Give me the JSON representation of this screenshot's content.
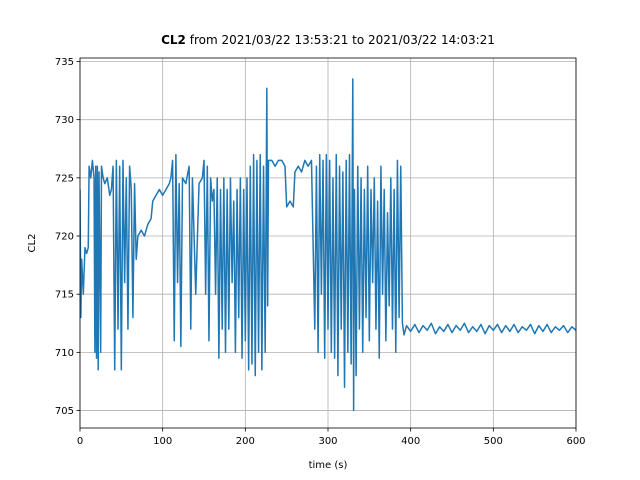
{
  "chart_data": {
    "type": "line",
    "title": {
      "bold": "CL2",
      "rest": "from 2021/03/22 13:53:21 to 2021/03/22 14:03:21"
    },
    "xlabel": "time (s)",
    "ylabel": "CL2",
    "x": [
      0,
      1,
      2,
      4,
      6,
      8,
      10,
      11,
      13,
      15,
      17,
      18,
      19,
      20,
      21,
      22,
      23,
      25,
      26,
      28,
      30,
      33,
      36,
      38,
      40,
      42,
      44,
      46,
      48,
      50,
      52,
      54,
      56,
      58,
      60,
      62,
      64,
      66,
      68,
      70,
      74,
      78,
      82,
      86,
      88,
      92,
      96,
      100,
      104,
      108,
      110,
      112,
      114,
      116,
      118,
      120,
      122,
      124,
      128,
      132,
      134,
      136,
      140,
      144,
      148,
      150,
      152,
      154,
      156,
      158,
      160,
      162,
      164,
      166,
      168,
      170,
      172,
      174,
      176,
      178,
      180,
      182,
      184,
      186,
      188,
      190,
      192,
      194,
      196,
      198,
      200,
      202,
      204,
      206,
      208,
      210,
      212,
      214,
      216,
      218,
      220,
      222,
      224,
      226,
      227,
      228,
      232,
      236,
      240,
      244,
      248,
      250,
      254,
      258,
      260,
      264,
      268,
      272,
      276,
      280,
      284,
      286,
      288,
      290,
      292,
      294,
      296,
      298,
      300,
      302,
      304,
      306,
      308,
      310,
      312,
      314,
      316,
      318,
      320,
      322,
      324,
      326,
      328,
      330,
      331,
      332,
      334,
      336,
      338,
      340,
      342,
      344,
      346,
      348,
      350,
      352,
      354,
      356,
      358,
      360,
      362,
      364,
      366,
      368,
      370,
      372,
      374,
      376,
      378,
      380,
      382,
      384,
      386,
      388,
      390,
      392,
      395,
      400,
      405,
      410,
      415,
      420,
      425,
      430,
      435,
      440,
      445,
      450,
      455,
      460,
      465,
      470,
      475,
      480,
      485,
      490,
      495,
      500,
      505,
      510,
      515,
      520,
      525,
      530,
      535,
      540,
      545,
      550,
      555,
      560,
      565,
      570,
      575,
      580,
      585,
      590,
      595,
      600
    ],
    "series": [
      {
        "color": "#1f77b4",
        "values": [
          724,
          713,
          718,
          715,
          719,
          718.5,
          719,
          726,
          725,
          726.5,
          725,
          710,
          726,
          709.5,
          726,
          708.5,
          725.5,
          710,
          726,
          725,
          724.5,
          725,
          723.5,
          724,
          726,
          708.5,
          726.5,
          712,
          726,
          708.5,
          726.5,
          716,
          725,
          712,
          726,
          724,
          713,
          724.5,
          718,
          720,
          720.5,
          720,
          721,
          721.5,
          723,
          723.5,
          724,
          723.5,
          724,
          724.5,
          725,
          726.5,
          711,
          727,
          716,
          724.5,
          710.5,
          725,
          724.5,
          726,
          712,
          725,
          715,
          724.5,
          725,
          726.5,
          715,
          726,
          711,
          725,
          723,
          724,
          715,
          725,
          709.5,
          724,
          712,
          725,
          710,
          724,
          712,
          725,
          716,
          723,
          710,
          724,
          713,
          725,
          709.5,
          724,
          711,
          725,
          708.5,
          726,
          709,
          727,
          708,
          726.5,
          710,
          727,
          708.5,
          726,
          710,
          732.7,
          714,
          726.5,
          726.5,
          726,
          726.5,
          726.5,
          726,
          722.5,
          723,
          722.5,
          725.5,
          726,
          725.5,
          726.5,
          726,
          726.5,
          712,
          726,
          710,
          727,
          715,
          726.5,
          709.5,
          727,
          712,
          726.5,
          710,
          725,
          709.5,
          727,
          708,
          726,
          712,
          725.5,
          707,
          726.5,
          710,
          727,
          709,
          733.5,
          705,
          724,
          708,
          726,
          712,
          725,
          710,
          724,
          713,
          726,
          711,
          724,
          716,
          725,
          712,
          723,
          709.5,
          726,
          715,
          724,
          711,
          722,
          714,
          725,
          712,
          724,
          710,
          726.5,
          713,
          726,
          712.5,
          711.5,
          712.3,
          711.8,
          712.4,
          711.7,
          712.3,
          711.9,
          712.5,
          711.6,
          712.2,
          711.8,
          712.4,
          711.7,
          712.3,
          711.9,
          712.5,
          711.7,
          712.2,
          711.8,
          712.4,
          711.6,
          712.3,
          711.9,
          712.4,
          711.7,
          712.3,
          711.8,
          712.4,
          711.7,
          712.2,
          711.9,
          712.4,
          711.6,
          712.3,
          711.8,
          712.4,
          711.7,
          712.2,
          711.9,
          712.3,
          711.7,
          712.2,
          711.9
        ]
      }
    ],
    "xlim": [
      0,
      600
    ],
    "xticks": [
      0,
      100,
      200,
      300,
      400,
      500,
      600
    ],
    "ylim": [
      703.5,
      735.3
    ],
    "yticks": [
      705,
      710,
      715,
      720,
      725,
      730,
      735
    ],
    "grid": true
  }
}
